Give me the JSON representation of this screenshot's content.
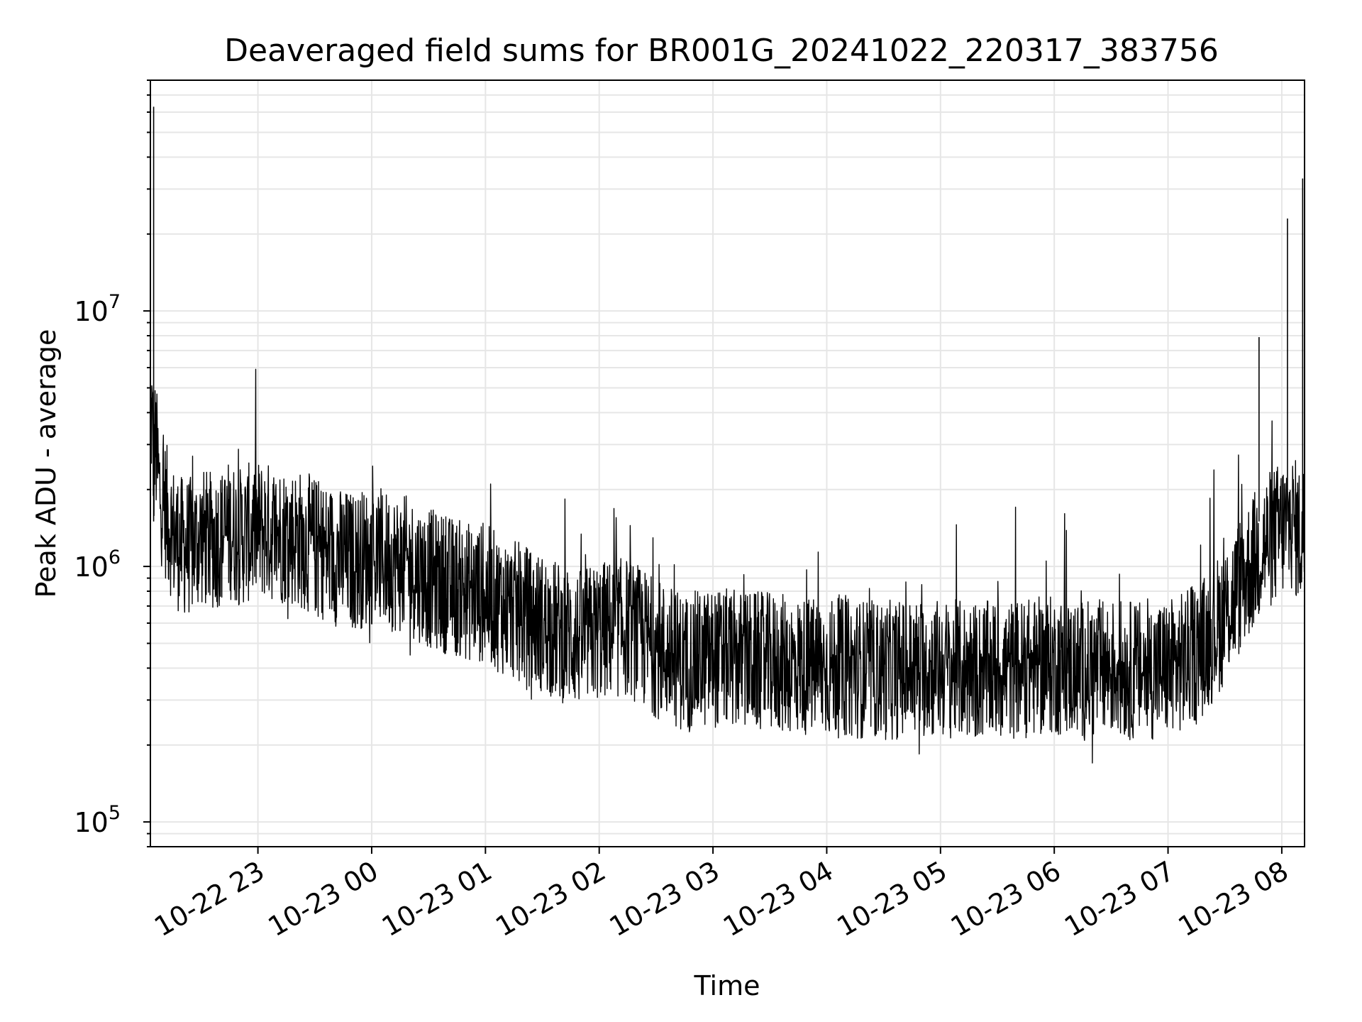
{
  "chart_data": {
    "type": "line",
    "title": "Deaveraged field sums for BR001G_20241022_220317_383756",
    "xlabel": "Time",
    "ylabel": "Peak ADU - average",
    "x_scale": "time",
    "y_scale": "log",
    "xlim": [
      "2024-10-22 22:03:17",
      "2024-10-23 08:12:00"
    ],
    "ylim": [
      80000,
      80000000
    ],
    "grid": true,
    "line_color": "#000000",
    "grid_color": "#e6e6e6",
    "x_ticks": [
      {
        "value": "2024-10-22 23:00",
        "label": "10-22 23"
      },
      {
        "value": "2024-10-23 00:00",
        "label": "10-23 00"
      },
      {
        "value": "2024-10-23 01:00",
        "label": "10-23 01"
      },
      {
        "value": "2024-10-23 02:00",
        "label": "10-23 02"
      },
      {
        "value": "2024-10-23 03:00",
        "label": "10-23 03"
      },
      {
        "value": "2024-10-23 04:00",
        "label": "10-23 04"
      },
      {
        "value": "2024-10-23 05:00",
        "label": "10-23 05"
      },
      {
        "value": "2024-10-23 06:00",
        "label": "10-23 06"
      },
      {
        "value": "2024-10-23 07:00",
        "label": "10-23 07"
      },
      {
        "value": "2024-10-23 08:00",
        "label": "10-23 08"
      }
    ],
    "y_ticks": [
      {
        "value": 100000,
        "base": "10",
        "exp": "5"
      },
      {
        "value": 1000000,
        "base": "10",
        "exp": "6"
      },
      {
        "value": 10000000,
        "base": "10",
        "exp": "7"
      }
    ],
    "series": [
      {
        "x": [
          "2024-10-22 22:03",
          "2024-10-22 22:04",
          "2024-10-22 22:05",
          "2024-10-22 22:06",
          "2024-10-22 22:08",
          "2024-10-22 22:10",
          "2024-10-22 22:13",
          "2024-10-22 22:16",
          "2024-10-22 22:20",
          "2024-10-22 22:25",
          "2024-10-22 22:30",
          "2024-10-22 22:35",
          "2024-10-22 22:40",
          "2024-10-22 22:45",
          "2024-10-22 22:50",
          "2024-10-22 22:55",
          "2024-10-22 23:00",
          "2024-10-22 23:10",
          "2024-10-22 23:20",
          "2024-10-22 23:30",
          "2024-10-22 23:40",
          "2024-10-22 23:50",
          "2024-10-23 00:00",
          "2024-10-23 00:10",
          "2024-10-23 00:20",
          "2024-10-23 00:30",
          "2024-10-23 00:40",
          "2024-10-23 00:50",
          "2024-10-23 01:00",
          "2024-10-23 01:10",
          "2024-10-23 01:20",
          "2024-10-23 01:30",
          "2024-10-23 01:40",
          "2024-10-23 01:50",
          "2024-10-23 02:00",
          "2024-10-23 02:15",
          "2024-10-23 02:30",
          "2024-10-23 02:45",
          "2024-10-23 03:00",
          "2024-10-23 03:15",
          "2024-10-23 03:30",
          "2024-10-23 03:45",
          "2024-10-23 04:00",
          "2024-10-23 04:15",
          "2024-10-23 04:30",
          "2024-10-23 04:45",
          "2024-10-23 05:00",
          "2024-10-23 05:15",
          "2024-10-23 05:30",
          "2024-10-23 05:45",
          "2024-10-23 06:00",
          "2024-10-23 06:15",
          "2024-10-23 06:30",
          "2024-10-23 06:45",
          "2024-10-23 07:00",
          "2024-10-23 07:10",
          "2024-10-23 07:20",
          "2024-10-23 07:30",
          "2024-10-23 07:40",
          "2024-10-23 07:50",
          "2024-10-23 08:00",
          "2024-10-23 08:05",
          "2024-10-23 08:10",
          "2024-10-23 08:12"
        ],
        "y": [
          3000000,
          4000000,
          2500000,
          3000000,
          2000000,
          1800000,
          1500000,
          1300000,
          1200000,
          1200000,
          1300000,
          1250000,
          1300000,
          1400000,
          1300000,
          1350000,
          1400000,
          1350000,
          1300000,
          1200000,
          1100000,
          1050000,
          1100000,
          1050000,
          1000000,
          900000,
          850000,
          800000,
          780000,
          700000,
          650000,
          600000,
          550000,
          520000,
          560000,
          580000,
          480000,
          420000,
          440000,
          430000,
          420000,
          410000,
          400000,
          400000,
          390000,
          400000,
          400000,
          390000,
          390000,
          400000,
          410000,
          390000,
          400000,
          390000,
          400000,
          430000,
          500000,
          650000,
          900000,
          1200000,
          1400000,
          1500000,
          1300000,
          1400000
        ]
      }
    ],
    "annotations": [
      {
        "x": "2024-10-22 22:05",
        "y": 63000000,
        "kind": "spike"
      },
      {
        "x": "2024-10-23 07:48",
        "y": 7900000,
        "kind": "spike"
      },
      {
        "x": "2024-10-23 08:03",
        "y": 23000000,
        "kind": "spike"
      },
      {
        "x": "2024-10-23 08:11",
        "y": 33000000,
        "kind": "spike"
      }
    ]
  }
}
